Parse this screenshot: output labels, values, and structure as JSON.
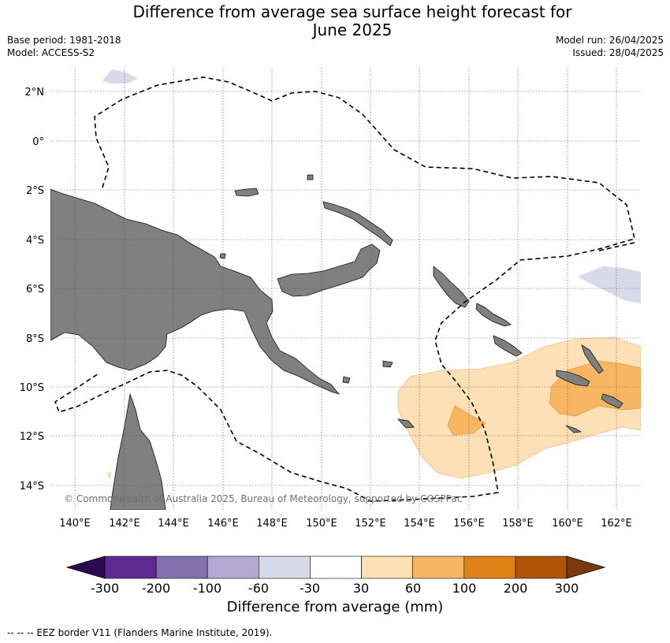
{
  "header": {
    "title_line1": "Difference from average sea surface height forecast for",
    "title_line2": "June 2025",
    "base_period": "Base period: 1981-2018",
    "model": "Model: ACCESS-S2",
    "model_run": "Model run: 26/04/2025",
    "issued": "Issued: 28/04/2025"
  },
  "map": {
    "lat_labels": [
      "2°N",
      "0°",
      "2°S",
      "4°S",
      "6°S",
      "8°S",
      "10°S",
      "12°S",
      "14°S"
    ],
    "lon_labels": [
      "140°E",
      "142°E",
      "144°E",
      "146°E",
      "148°E",
      "150°E",
      "152°E",
      "154°E",
      "156°E",
      "158°E",
      "160°E",
      "162°E"
    ],
    "copyright": "© Commonwealth of Australia 2025, Bureau of Meteorology, supported by COSPPac",
    "colors": {
      "land": "#808080",
      "ocean": "#ffffff",
      "eez": "#000000"
    }
  },
  "colorbar": {
    "title": "Difference from average (mm)",
    "tick_labels": [
      "-300",
      "-200",
      "-100",
      "-60",
      "-30",
      "30",
      "60",
      "100",
      "200",
      "300"
    ],
    "under_color": "#2b0a4f",
    "over_color": "#7a3b0c",
    "colors": [
      "#5c2a90",
      "#8370ad",
      "#b3a8d1",
      "#d8d9e9",
      "#ffffff",
      "#fde0b6",
      "#f8b662",
      "#e08218",
      "#b15508"
    ]
  },
  "footnote": "--  --  -- EEZ border V11 (Flanders Marine Institute, 2019)."
}
